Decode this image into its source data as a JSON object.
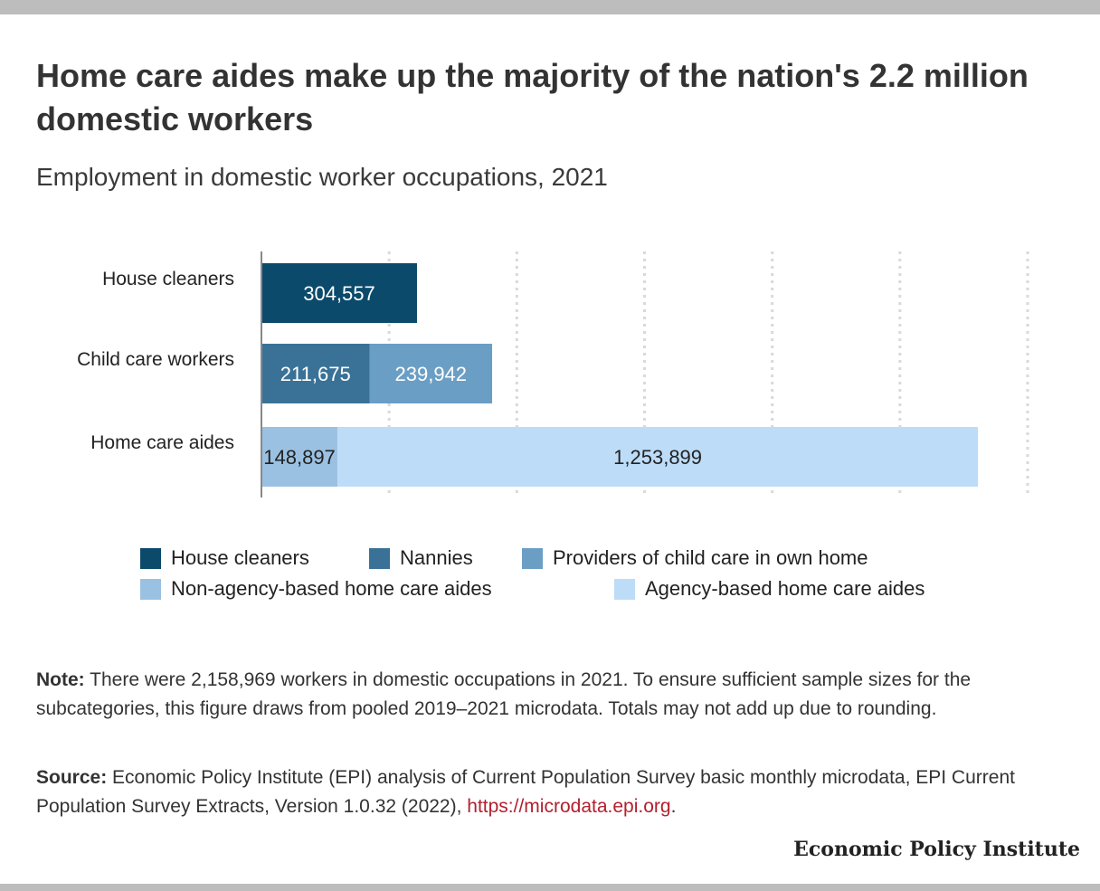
{
  "title": "Home care aides make up the majority of the nation's 2.2 million domestic workers",
  "subtitle": "Employment in domestic worker occupations, 2021",
  "chart_data": {
    "type": "bar",
    "orientation": "horizontal",
    "stacked": true,
    "title": "Home care aides make up the majority of the nation's 2.2 million domestic workers",
    "subtitle": "Employment in domestic worker occupations, 2021",
    "categories": [
      "House cleaners",
      "Child care workers",
      "Home care aides"
    ],
    "series": [
      {
        "name": "House cleaners",
        "color": "#0b4a6b",
        "label_color": "#ffffff",
        "values": [
          304557,
          null,
          null
        ],
        "labels": [
          "304,557",
          "",
          ""
        ]
      },
      {
        "name": "Nannies",
        "color": "#3a7297",
        "label_color": "#ffffff",
        "values": [
          null,
          211675,
          null
        ],
        "labels": [
          "",
          "211,675",
          ""
        ]
      },
      {
        "name": "Providers of child care in own home",
        "color": "#6b9ec4",
        "label_color": "#ffffff",
        "values": [
          null,
          239942,
          null
        ],
        "labels": [
          "",
          "239,942",
          ""
        ]
      },
      {
        "name": "Non-agency-based home care aides",
        "color": "#9bc1e2",
        "label_color": "#222222",
        "values": [
          null,
          null,
          148897
        ],
        "labels": [
          "",
          "",
          "148,897"
        ]
      },
      {
        "name": "Agency-based home care aides",
        "color": "#bddcf8",
        "label_color": "#222222",
        "values": [
          null,
          null,
          1253899
        ],
        "labels": [
          "",
          "",
          "1,253,899"
        ]
      }
    ],
    "xlim": [
      0,
      1500000
    ],
    "grid": true,
    "legend_position": "bottom"
  },
  "note": {
    "label": "Note:",
    "text": "There were 2,158,969 workers in domestic occupations in 2021. To ensure sufficient sample sizes for the subcategories, this figure draws from pooled 2019–2021 microdata. Totals may not add up due to rounding."
  },
  "source": {
    "label": "Source:",
    "text": "Economic Policy Institute (EPI) analysis of Current Population Survey basic monthly microdata, EPI Current Population Survey Extracts, Version 1.0.32 (2022),",
    "link": "https://microdata.epi.org",
    "end": "."
  },
  "brand": "Economic Policy Institute"
}
